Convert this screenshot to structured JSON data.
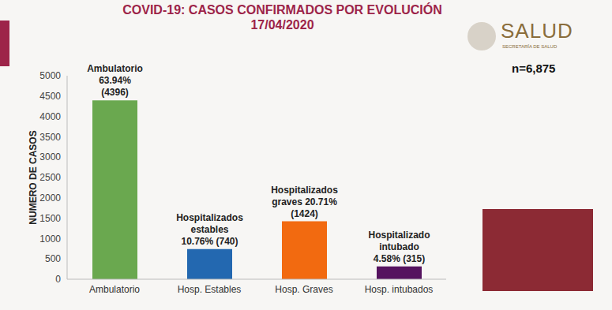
{
  "chart_data": {
    "type": "bar",
    "title": "COVID-19: CASOS CONFIRMADOS POR EVOLUCIÓN",
    "subtitle": "17/04/2020",
    "y_label": "NUMERO DE CASOS",
    "categories": [
      "Ambulatorio",
      "Hosp. Estables",
      "Hosp. Graves",
      "Hosp. intubados"
    ],
    "values": [
      4396,
      740,
      1424,
      315
    ],
    "colors": [
      "#6aa84f",
      "#2368b0",
      "#f26a10",
      "#55135f"
    ],
    "ylim": [
      0,
      5000
    ],
    "yticks": [
      0,
      500,
      1000,
      1500,
      2000,
      2500,
      3000,
      3500,
      4000,
      4500,
      5000
    ],
    "grid": false,
    "annotations": {
      "bar_labels": [
        [
          "Ambulatorio",
          "63.94%",
          "(4396)"
        ],
        [
          "Hospitalizados",
          "estables",
          "10.76% (740)"
        ],
        [
          "Hospitalizados",
          "graves 20.71%",
          "(1424)"
        ],
        [
          "Hospitalizado",
          "intubado",
          "4.58% (315)"
        ]
      ],
      "n": "n=6,875",
      "logo": [
        "SALUD",
        "SECRETARÍA DE SALUD"
      ]
    }
  }
}
